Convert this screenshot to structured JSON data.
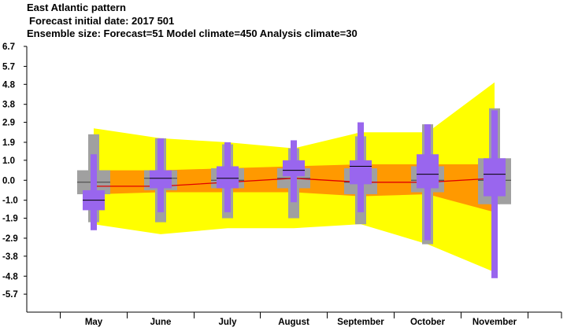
{
  "chart_data": {
    "type": "box",
    "title": "East Atlantic pattern",
    "subtitle_1": "Forecast initial date: 2017 501",
    "subtitle_2": "Ensemble size: Forecast=51 Model climate=450 Analysis climate=30",
    "categories": [
      "May",
      "June",
      "July",
      "August",
      "September",
      "October",
      "November"
    ],
    "y_ticks": [
      6.7,
      5.7,
      4.8,
      3.8,
      2.9,
      1.9,
      1.0,
      0.0,
      -1.0,
      -1.9,
      -2.9,
      -3.8,
      -4.8,
      -5.7
    ],
    "y_tick_labels": [
      "6.7",
      "5.7",
      "4.8",
      "3.8",
      "2.9",
      "1.9",
      "1.0",
      "0.0",
      "-1.0",
      "-1.9",
      "-2.9",
      "-3.8",
      "-4.8",
      "-5.7"
    ],
    "ylim": [
      -6.6,
      6.7
    ],
    "analysis_climate_envelope": {
      "color": "#ffff00",
      "upper": [
        2.6,
        2.1,
        1.9,
        1.6,
        2.4,
        2.4,
        4.9
      ],
      "lower": [
        -2.2,
        -2.7,
        -2.4,
        -2.4,
        -2.2,
        -3.2,
        -4.6
      ]
    },
    "model_climate_band": {
      "color": "#ff9900",
      "upper": [
        0.5,
        0.5,
        0.6,
        0.7,
        0.8,
        0.8,
        0.8
      ],
      "lower": [
        -0.7,
        -0.6,
        -0.6,
        -0.6,
        -0.8,
        -0.7,
        -1.6
      ]
    },
    "model_climate_median_line": {
      "color": "#e00000",
      "values": [
        -0.3,
        -0.3,
        -0.1,
        0.1,
        -0.1,
        -0.1,
        0.1
      ]
    },
    "model_climate_boxes": {
      "color": "#a0a0a0",
      "whisker_low": [
        -2.1,
        -2.1,
        -1.9,
        -1.9,
        -2.2,
        -3.2,
        -1.2
      ],
      "q1": [
        -0.7,
        -0.5,
        -0.4,
        -0.4,
        -0.7,
        -0.6,
        -1.2
      ],
      "median": [
        -0.1,
        0.1,
        0.0,
        0.1,
        -0.1,
        0.0,
        0.0
      ],
      "q3": [
        0.5,
        0.5,
        0.6,
        0.6,
        0.6,
        0.7,
        1.1
      ],
      "whisker_high": [
        2.3,
        2.1,
        1.8,
        1.6,
        2.2,
        2.8,
        3.6
      ]
    },
    "forecast_boxes": {
      "color": "#9966ee",
      "whisker_low": [
        -2.5,
        -1.6,
        -1.6,
        -1.1,
        -1.6,
        -3.0,
        -4.9
      ],
      "q1": [
        -1.5,
        -0.4,
        -0.4,
        0.2,
        -0.2,
        -0.4,
        -0.8
      ],
      "median": [
        -1.0,
        0.1,
        0.1,
        0.5,
        0.7,
        0.3,
        0.3
      ],
      "q3": [
        -0.5,
        0.5,
        0.7,
        1.0,
        1.0,
        1.3,
        1.1
      ],
      "whisker_high": [
        1.3,
        2.1,
        1.9,
        2.0,
        2.9,
        2.8,
        3.5
      ]
    },
    "grid": false,
    "legend": "none"
  }
}
